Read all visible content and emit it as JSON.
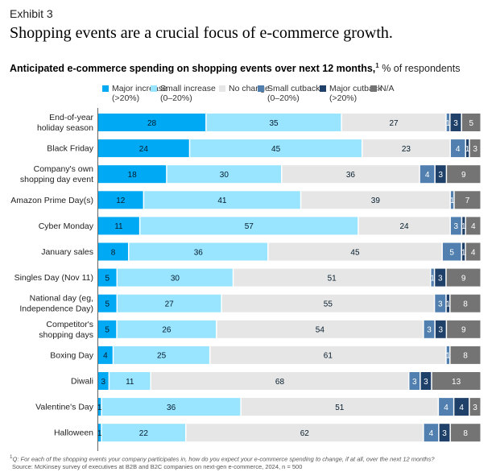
{
  "header": {
    "exhibit": "Exhibit 3",
    "title": "Shopping events are a crucial focus of e-commerce growth.",
    "subtitle_bold": "Anticipated e-commerce spending on shopping events over next 12 months,",
    "subtitle_sup": "1",
    "subtitle_rest": " % of respondents"
  },
  "footnote": {
    "q_marker": "1",
    "q_text": "Q: For each of the shopping events your company participates in, how do you expect your e-commerce spending to change, if at all, over the next 12 months?",
    "source": "Source: McKinsey survey of executives at B2B and B2C companies on next-gen e-commerce, 2024, n = 500"
  },
  "chart_data": {
    "type": "bar",
    "orientation": "horizontal-stacked-100",
    "title": "Anticipated e-commerce spending on shopping events over next 12 months, % of respondents",
    "xlabel": "",
    "ylabel": "",
    "legend_position": "top-right",
    "grid": false,
    "xlim": [
      0,
      100
    ],
    "categories": [
      [
        "End-of-year",
        "holiday season"
      ],
      [
        "Black Friday"
      ],
      [
        "Company's own",
        "shopping day event"
      ],
      [
        "Amazon Prime Day(s)"
      ],
      [
        "Cyber Monday"
      ],
      [
        "January sales"
      ],
      [
        "Singles Day (Nov 11)"
      ],
      [
        "National day (eg,",
        "Independence Day)"
      ],
      [
        "Competitor's",
        "shopping days"
      ],
      [
        "Boxing Day"
      ],
      [
        "Diwali"
      ],
      [
        "Valentine's Day"
      ],
      [
        "Halloween"
      ]
    ],
    "series": [
      {
        "name": "Major increase",
        "sub": "(>20%)",
        "color": "#00A9F4",
        "label_color": "#051c2c",
        "values": [
          28,
          24,
          18,
          12,
          11,
          8,
          5,
          5,
          5,
          4,
          3,
          1,
          1
        ]
      },
      {
        "name": "Small increase",
        "sub": "(0–20%)",
        "color": "#99E4FF",
        "label_color": "#051c2c",
        "values": [
          35,
          45,
          30,
          41,
          57,
          36,
          30,
          27,
          26,
          25,
          11,
          36,
          22
        ]
      },
      {
        "name": "No change",
        "sub": "",
        "color": "#E6E6E6",
        "label_color": "#051c2c",
        "values": [
          27,
          23,
          36,
          39,
          24,
          45,
          51,
          55,
          54,
          61,
          68,
          51,
          62
        ]
      },
      {
        "name": "Small cutback",
        "sub": "(0–20%)",
        "color": "#5180B0",
        "label_color": "#ffffff",
        "values": [
          1,
          4,
          4,
          1,
          3,
          5,
          1,
          3,
          3,
          1,
          3,
          4,
          4
        ]
      },
      {
        "name": "Major cutback",
        "sub": "(>20%)",
        "color": "#1F4068",
        "label_color": "#ffffff",
        "values": [
          3,
          1,
          3,
          0,
          1,
          1,
          3,
          1,
          3,
          0,
          3,
          4,
          3
        ]
      },
      {
        "name": "N/A",
        "sub": "",
        "color": "#747474",
        "label_color": "#ffffff",
        "values": [
          5,
          3,
          9,
          7,
          4,
          4,
          9,
          8,
          9,
          8,
          13,
          3,
          8
        ]
      }
    ]
  }
}
